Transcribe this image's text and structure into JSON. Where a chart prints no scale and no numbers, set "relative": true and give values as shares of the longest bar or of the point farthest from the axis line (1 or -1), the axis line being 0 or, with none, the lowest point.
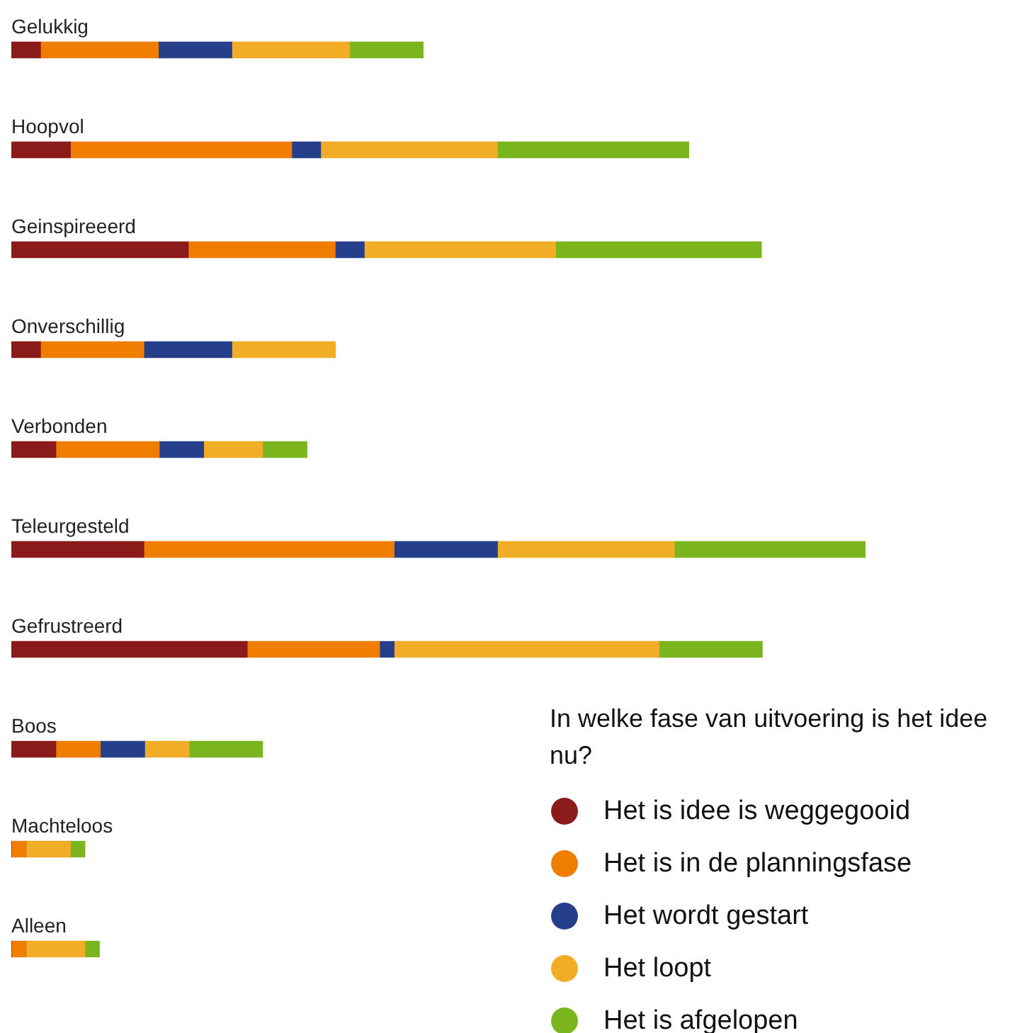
{
  "chart_data": {
    "type": "bar",
    "orientation": "horizontal",
    "stacked": true,
    "relative": true,
    "legend": "bottom right",
    "legend_title": "In welke fase van uitvoering is het idee nu?",
    "categories": [
      "Gelukkig",
      "Hoopvol",
      "Geinspireeerd",
      "Onverschillig",
      "Verbonden",
      "Teleurgesteld",
      "Gefrustreerd",
      "Boos",
      "Machteloos",
      "Alleen"
    ],
    "series": [
      {
        "name": "Het is idee is weggegooid",
        "color": "#8b1a1a",
        "values": [
          0.034,
          0.069,
          0.207,
          0.034,
          0.052,
          0.155,
          0.276,
          0.052,
          0,
          0
        ]
      },
      {
        "name": "Het is in de planningsfase",
        "color": "#ef7d00",
        "values": [
          0.138,
          0.259,
          0.172,
          0.121,
          0.121,
          0.293,
          0.155,
          0.052,
          0.017,
          0.017
        ]
      },
      {
        "name": "Het wordt gestart",
        "color": "#253f8a",
        "values": [
          0.086,
          0.034,
          0.034,
          0.103,
          0.052,
          0.121,
          0.017,
          0.052,
          0,
          0
        ]
      },
      {
        "name": "Het loopt",
        "color": "#f0ad25",
        "values": [
          0.138,
          0.207,
          0.224,
          0.121,
          0.069,
          0.207,
          0.31,
          0.052,
          0.052,
          0.069
        ]
      },
      {
        "name": "Het is afgelopen",
        "color": "#7ab51d",
        "values": [
          0.086,
          0.224,
          0.241,
          0,
          0.052,
          0.224,
          0.121,
          0.086,
          0.017,
          0.017
        ]
      }
    ]
  }
}
